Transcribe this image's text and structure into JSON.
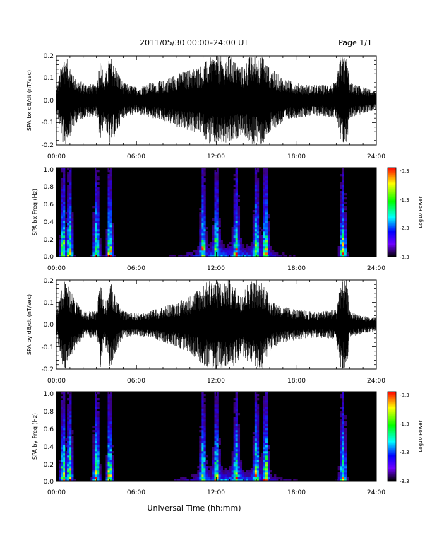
{
  "header": {
    "title": "2011/05/30  00:00–24:00 UT",
    "page": "Page 1/1"
  },
  "xlabel": "Universal Time (hh:mm)",
  "x_ticks": [
    "00:00",
    "06:00",
    "12:00",
    "18:00",
    "24:00"
  ],
  "colorbar": {
    "label": "Log10 Power",
    "ticks": [
      "-0.3",
      "-1.3",
      "-2.3",
      "-3.3"
    ],
    "colors": [
      "#ff0000",
      "#ffff00",
      "#00ff00",
      "#00ffff",
      "#0000ff",
      "#7000ff",
      "#000000"
    ]
  },
  "chart_data": [
    {
      "type": "line",
      "ylabel": "SPA bx dB/dt (nT/sec)",
      "ylim": [
        -0.2,
        0.2
      ],
      "y_ticks": [
        "0.2",
        "0.1",
        "0.0",
        "-0.1",
        "-0.2"
      ],
      "xlim": [
        "00:00",
        "24:00"
      ],
      "color": "#000000",
      "envelope": {
        "x_hours": [
          0,
          0.5,
          0.7,
          1.5,
          2.0,
          3.0,
          3.3,
          3.6,
          4.0,
          4.5,
          5.0,
          6.0,
          7.0,
          8.0,
          9.0,
          10.0,
          11.0,
          11.5,
          12.0,
          13.0,
          14.0,
          14.5,
          15.0,
          15.5,
          16.0,
          17.0,
          18.0,
          19.0,
          20.0,
          21.0,
          21.3,
          21.8,
          22.0,
          23.0,
          24.0
        ],
        "amplitude": [
          0.05,
          0.2,
          0.2,
          0.1,
          0.08,
          0.07,
          0.2,
          0.1,
          0.2,
          0.15,
          0.08,
          0.06,
          0.08,
          0.09,
          0.12,
          0.14,
          0.16,
          0.2,
          0.2,
          0.2,
          0.15,
          0.2,
          0.2,
          0.2,
          0.15,
          0.1,
          0.08,
          0.07,
          0.07,
          0.08,
          0.2,
          0.2,
          0.08,
          0.06,
          0.04
        ]
      }
    },
    {
      "type": "heatmap",
      "ylabel": "SPA bx Freq (Hz)",
      "ylim": [
        0.0,
        1.0
      ],
      "y_ticks": [
        "1.0",
        "0.8",
        "0.6",
        "0.4",
        "0.2",
        "0.0"
      ],
      "xlim": [
        "00:00",
        "24:00"
      ],
      "zlim": [
        -3.3,
        -0.3
      ],
      "hotspots_hours": [
        0.5,
        1.0,
        3.0,
        4.0,
        11.0,
        12.0,
        13.5,
        15.0,
        15.7,
        21.5
      ]
    },
    {
      "type": "line",
      "ylabel": "SPA by dB/dt (nT/sec)",
      "ylim": [
        -0.2,
        0.2
      ],
      "y_ticks": [
        "0.2",
        "0.1",
        "0.0",
        "-0.1",
        "-0.2"
      ],
      "xlim": [
        "00:00",
        "24:00"
      ],
      "color": "#000000",
      "envelope": {
        "x_hours": [
          0,
          0.5,
          0.7,
          1.5,
          2.0,
          3.0,
          3.3,
          3.6,
          4.0,
          4.5,
          5.0,
          6.0,
          7.0,
          8.0,
          9.0,
          10.0,
          11.0,
          11.5,
          12.0,
          13.0,
          14.0,
          14.5,
          15.0,
          15.5,
          16.0,
          17.0,
          18.0,
          19.0,
          20.0,
          21.0,
          21.3,
          21.8,
          22.0,
          23.0,
          24.0
        ],
        "amplitude": [
          0.05,
          0.2,
          0.2,
          0.1,
          0.06,
          0.06,
          0.2,
          0.08,
          0.2,
          0.12,
          0.06,
          0.05,
          0.06,
          0.08,
          0.1,
          0.13,
          0.18,
          0.2,
          0.2,
          0.2,
          0.15,
          0.2,
          0.2,
          0.2,
          0.12,
          0.08,
          0.07,
          0.06,
          0.06,
          0.07,
          0.2,
          0.2,
          0.06,
          0.04,
          0.03
        ]
      }
    },
    {
      "type": "heatmap",
      "ylabel": "SPA by Freq (Hz)",
      "ylim": [
        0.0,
        1.0
      ],
      "y_ticks": [
        "1.0",
        "0.8",
        "0.6",
        "0.4",
        "0.2",
        "0.0"
      ],
      "xlim": [
        "00:00",
        "24:00"
      ],
      "zlim": [
        -3.3,
        -0.3
      ],
      "hotspots_hours": [
        0.5,
        1.0,
        3.0,
        4.0,
        11.0,
        12.0,
        13.5,
        15.0,
        15.7,
        21.5
      ]
    }
  ]
}
